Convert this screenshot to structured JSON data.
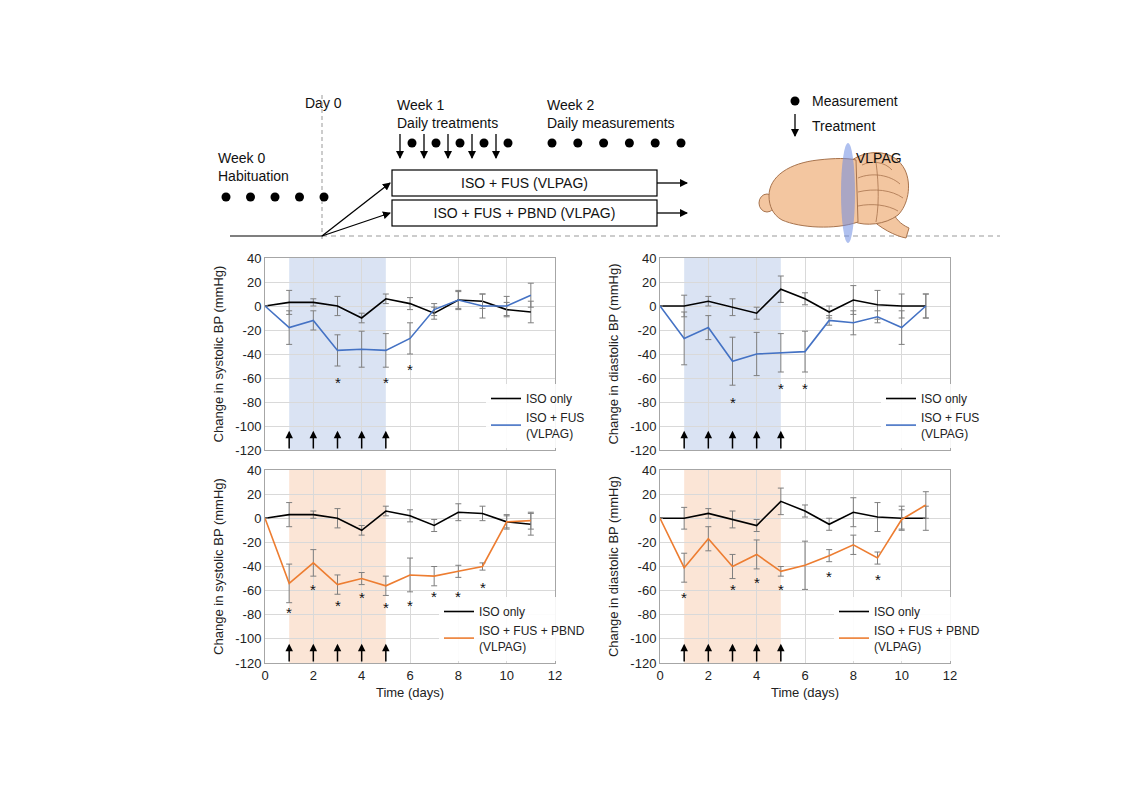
{
  "schematic": {
    "day0": "Day 0",
    "phases": [
      {
        "lines": [
          "Week 0",
          "Habituation"
        ],
        "measurements": 5
      },
      {
        "lines": [
          "Week 1",
          "Daily treatments"
        ],
        "treatments": 5,
        "measurements": 5
      },
      {
        "lines": [
          "Week 2",
          "Daily measurements"
        ],
        "measurements": 6
      }
    ],
    "groups": [
      "ISO + FUS (VLPAG)",
      "ISO + FUS + PBND (VLPAG)"
    ],
    "key": {
      "measurement": "Measurement",
      "treatment": "Treatment"
    },
    "region": "VLPAG"
  },
  "chart_data": [
    {
      "type": "line",
      "y_label": "Change in systolic BP (mmHg)",
      "xlim": [
        0,
        12
      ],
      "xticks": [
        0,
        2,
        4,
        6,
        8,
        10,
        12
      ],
      "ylim": [
        -120,
        40
      ],
      "yticks": [
        -120,
        -100,
        -80,
        -60,
        -40,
        -20,
        0,
        20,
        40
      ],
      "grid": true,
      "legend": "lower right",
      "tick_labels": "y",
      "treatment_period": [
        1,
        5
      ],
      "treatment_days": [
        1,
        2,
        3,
        4,
        5
      ],
      "x": [
        0,
        1,
        2,
        3,
        4,
        5,
        6,
        7,
        8,
        9,
        10,
        11
      ],
      "series": [
        {
          "name": "ISO only",
          "color": "#000000",
          "values": [
            0,
            3,
            3,
            0,
            -10,
            6,
            2,
            -6,
            5,
            4,
            -3,
            -5
          ],
          "error": [
            null,
            10,
            3,
            8,
            4,
            4,
            5,
            5,
            7,
            6,
            6,
            9
          ]
        },
        {
          "name": "ISO + FUS (VLPAG)",
          "color": "#4472c4",
          "values": [
            0,
            -18,
            -12,
            -37,
            -36,
            -37,
            -27,
            -3,
            5,
            0,
            0,
            9
          ],
          "error": [
            null,
            14,
            8,
            13,
            15,
            14,
            13,
            5,
            8,
            10,
            8,
            10
          ]
        }
      ],
      "annotations": [
        {
          "x": 3,
          "y": -64,
          "text": "*"
        },
        {
          "x": 5,
          "y": -64,
          "text": "*"
        },
        {
          "x": 6,
          "y": -53,
          "text": "*"
        }
      ]
    },
    {
      "type": "line",
      "y_label": "Change in diastolic BP (mmHg)",
      "xlim": [
        0,
        12
      ],
      "xticks": [
        0,
        2,
        4,
        6,
        8,
        10,
        12
      ],
      "ylim": [
        -120,
        40
      ],
      "yticks": [
        -120,
        -100,
        -80,
        -60,
        -40,
        -20,
        0,
        20,
        40
      ],
      "grid": true,
      "legend": "lower right",
      "tick_labels": "y",
      "treatment_period": [
        1,
        5
      ],
      "treatment_days": [
        1,
        2,
        3,
        4,
        5
      ],
      "x": [
        0,
        1,
        2,
        3,
        4,
        5,
        6,
        7,
        8,
        9,
        10,
        11
      ],
      "series": [
        {
          "name": "ISO only",
          "color": "#000000",
          "values": [
            0,
            0,
            4,
            -1,
            -6,
            14,
            6,
            -5,
            5,
            1,
            0,
            0
          ],
          "error": [
            null,
            9,
            4,
            7,
            5,
            11,
            5,
            5,
            12,
            12,
            10,
            10
          ]
        },
        {
          "name": "ISO + FUS (VLPAG)",
          "color": "#4472c4",
          "values": [
            0,
            -27,
            -18,
            -46,
            -40,
            -39,
            -38,
            -12,
            -14,
            -9,
            -18,
            0
          ],
          "error": [
            null,
            22,
            10,
            20,
            18,
            16,
            17,
            4,
            10,
            5,
            14,
            10
          ]
        }
      ],
      "annotations": [
        {
          "x": 3,
          "y": -80,
          "text": "*"
        },
        {
          "x": 5,
          "y": -69,
          "text": "*"
        },
        {
          "x": 6,
          "y": -69,
          "text": "*"
        }
      ]
    },
    {
      "type": "line",
      "x_label": "Time (days)",
      "y_label": "Change in systolic BP (mmHg)",
      "xlim": [
        0,
        12
      ],
      "xticks": [
        0,
        2,
        4,
        6,
        8,
        10,
        12
      ],
      "ylim": [
        -120,
        40
      ],
      "yticks": [
        -120,
        -100,
        -80,
        -60,
        -40,
        -20,
        0,
        20,
        40
      ],
      "grid": true,
      "legend": "lower right",
      "treatment_period": [
        1,
        5
      ],
      "treatment_days": [
        1,
        2,
        3,
        4,
        5
      ],
      "x": [
        0,
        1,
        2,
        3,
        4,
        5,
        6,
        7,
        8,
        9,
        10,
        11
      ],
      "series": [
        {
          "name": "ISO only",
          "color": "#000000",
          "values": [
            0,
            3,
            3,
            0,
            -10,
            6,
            2,
            -6,
            5,
            4,
            -3,
            -5
          ],
          "error": [
            null,
            10,
            3,
            8,
            4,
            4,
            5,
            5,
            7,
            6,
            6,
            9
          ]
        },
        {
          "name": "ISO + FUS + PBND (VLPAG)",
          "color": "#ed7d31",
          "values": [
            0,
            -54,
            -37,
            -55,
            -50,
            -56,
            -47,
            -48,
            -44,
            -40,
            -3,
            -2
          ],
          "error": [
            null,
            16,
            11,
            8,
            5,
            8,
            14,
            8,
            5,
            3,
            5,
            7
          ]
        }
      ],
      "annotations": [
        {
          "x": 1,
          "y": -78,
          "text": "*"
        },
        {
          "x": 2,
          "y": -59,
          "text": "*"
        },
        {
          "x": 3,
          "y": -72,
          "text": "*"
        },
        {
          "x": 4,
          "y": -66,
          "text": "*"
        },
        {
          "x": 5,
          "y": -74,
          "text": "*"
        },
        {
          "x": 6,
          "y": -72,
          "text": "*"
        },
        {
          "x": 7,
          "y": -65,
          "text": "*"
        },
        {
          "x": 8,
          "y": -65,
          "text": "*"
        },
        {
          "x": 9,
          "y": -57,
          "text": "*"
        }
      ]
    },
    {
      "type": "line",
      "x_label": "Time (days)",
      "y_label": "Change in diastolic BP (mmHg)",
      "xlim": [
        0,
        12
      ],
      "xticks": [
        0,
        2,
        4,
        6,
        8,
        10,
        12
      ],
      "ylim": [
        -120,
        40
      ],
      "yticks": [
        -120,
        -100,
        -80,
        -60,
        -40,
        -20,
        0,
        20,
        40
      ],
      "grid": true,
      "legend": "lower right",
      "treatment_period": [
        1,
        5
      ],
      "treatment_days": [
        1,
        2,
        3,
        4,
        5
      ],
      "x": [
        0,
        1,
        2,
        3,
        4,
        5,
        6,
        7,
        8,
        9,
        10,
        11
      ],
      "series": [
        {
          "name": "ISO only",
          "color": "#000000",
          "values": [
            0,
            0,
            4,
            -1,
            -6,
            14,
            6,
            -5,
            5,
            1,
            0,
            0
          ],
          "error": [
            null,
            9,
            4,
            7,
            5,
            11,
            5,
            5,
            12,
            12,
            10,
            10
          ]
        },
        {
          "name": "ISO + FUS + PBND (VLPAG)",
          "color": "#ed7d31",
          "values": [
            0,
            -41,
            -17,
            -40,
            -30,
            -44,
            -39,
            -31,
            -22,
            -33,
            -1,
            11
          ],
          "error": [
            null,
            12,
            10,
            10,
            12,
            4,
            20,
            5,
            8,
            5,
            8,
            11
          ]
        }
      ],
      "annotations": [
        {
          "x": 1,
          "y": -66,
          "text": "*"
        },
        {
          "x": 3,
          "y": -59,
          "text": "*"
        },
        {
          "x": 4,
          "y": -53,
          "text": "*"
        },
        {
          "x": 5,
          "y": -59,
          "text": "*"
        },
        {
          "x": 7,
          "y": -48,
          "text": "*"
        },
        {
          "x": 9,
          "y": -51,
          "text": "*"
        }
      ]
    }
  ]
}
